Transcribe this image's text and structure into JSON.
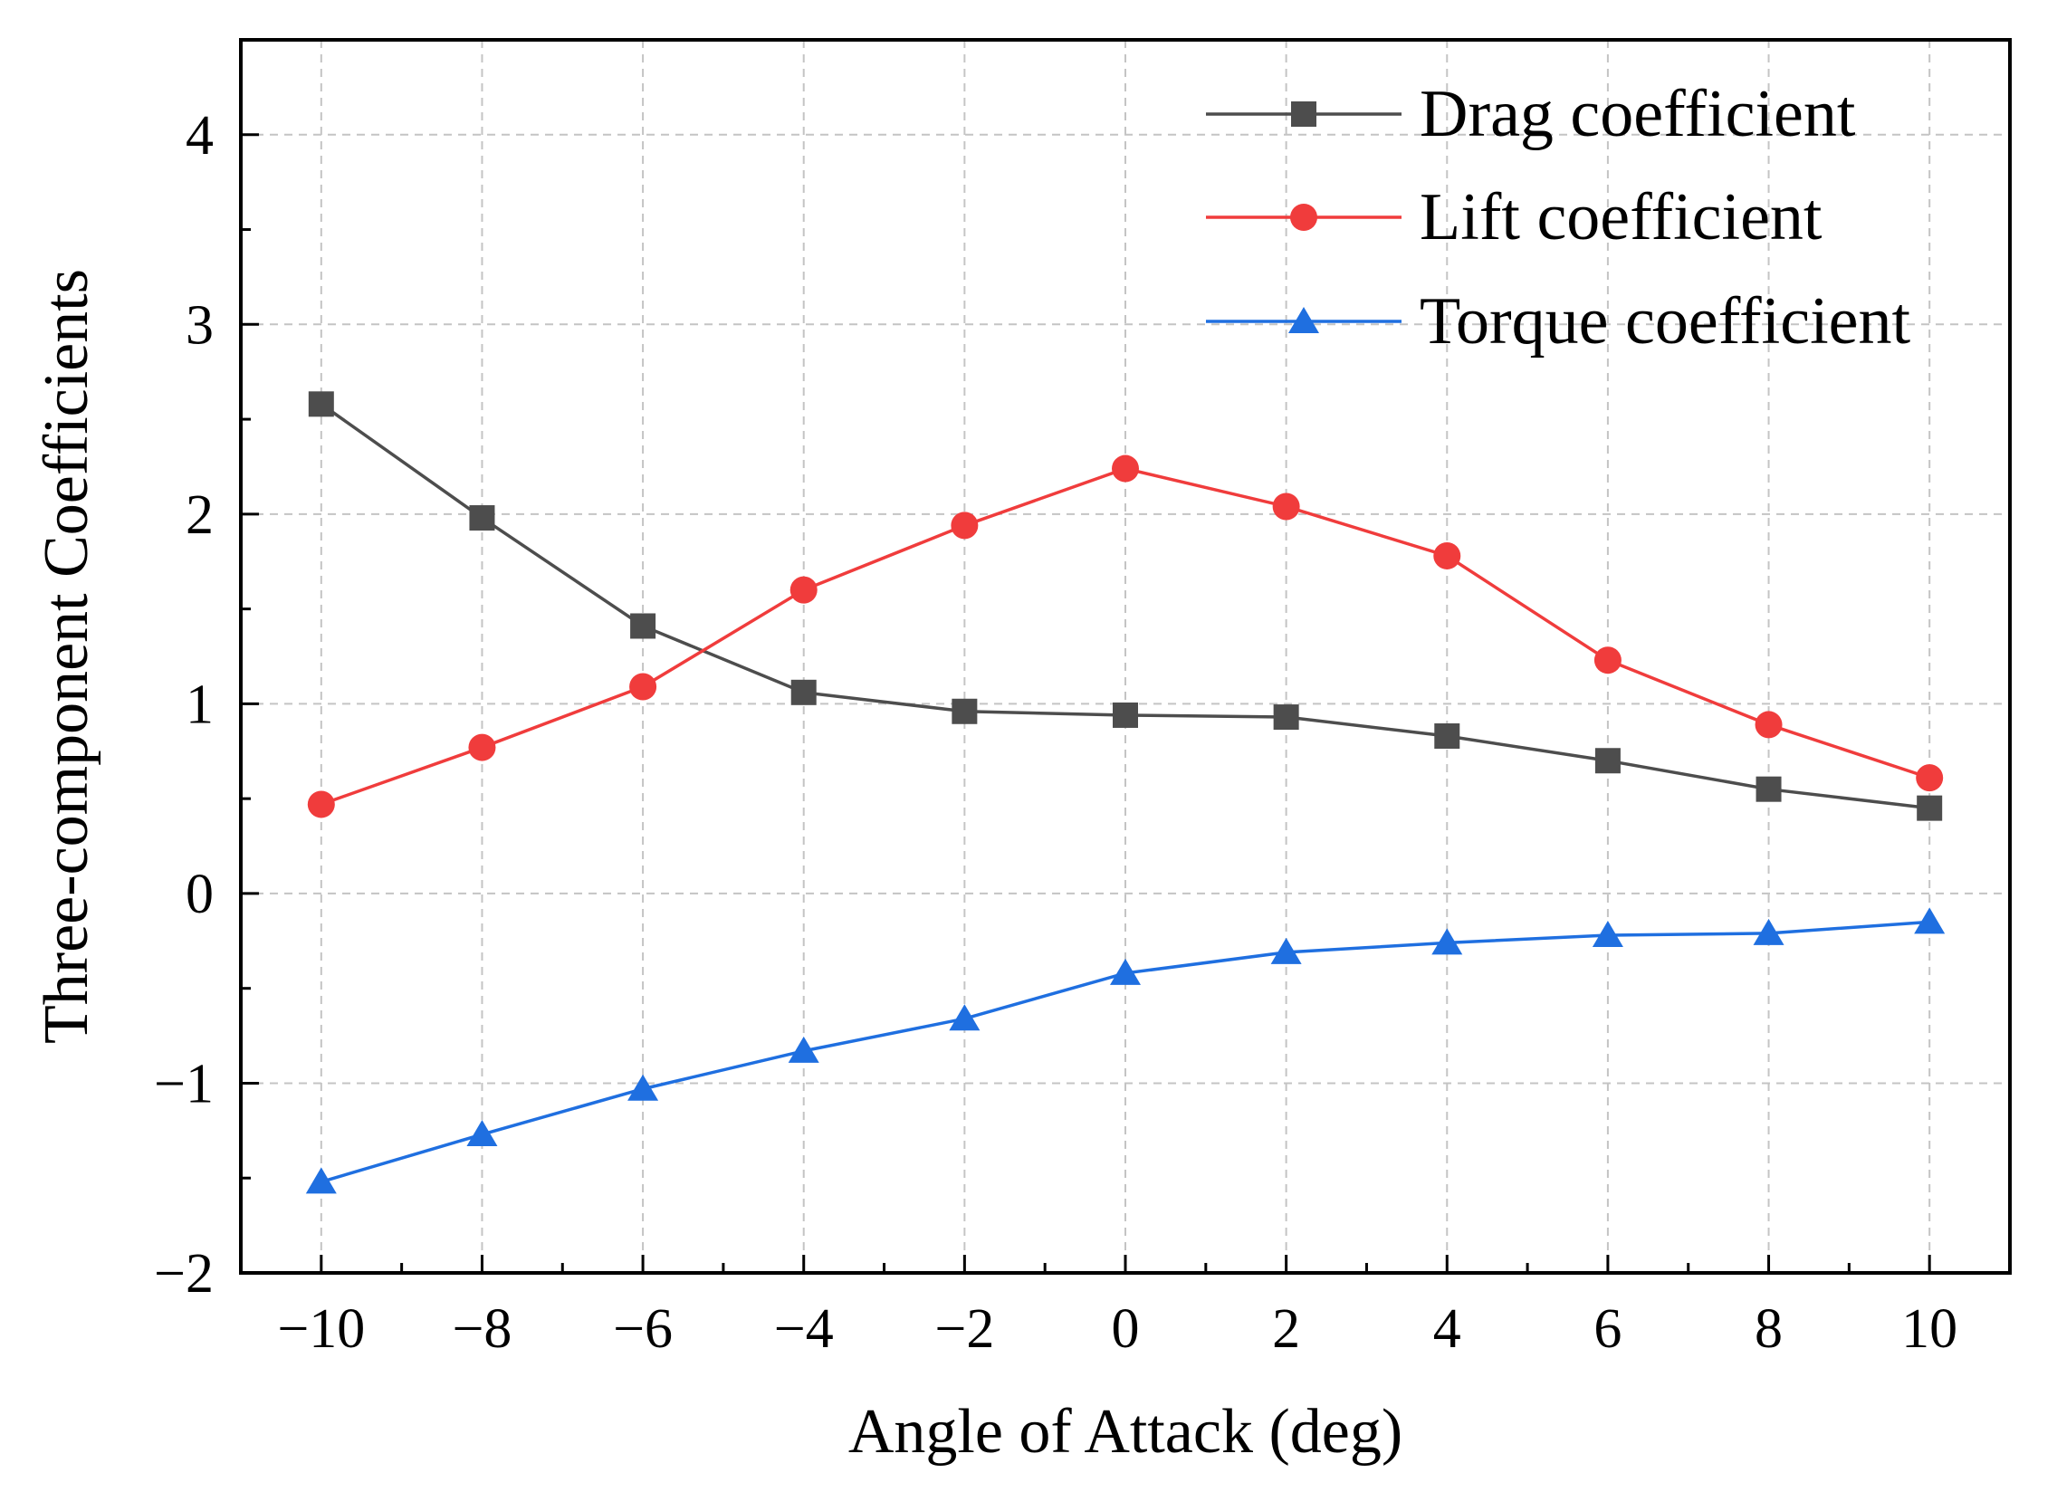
{
  "chart_data": {
    "type": "line",
    "title": "",
    "xlabel": "Angle of Attack (deg)",
    "ylabel": "Three-component Coefficients",
    "xlim": [
      -11,
      11
    ],
    "ylim": [
      -2,
      4.5
    ],
    "x_ticks": [
      -10,
      -8,
      -6,
      -4,
      -2,
      0,
      2,
      4,
      6,
      8,
      10
    ],
    "x_tick_labels": [
      "−10",
      "−8",
      "−6",
      "−4",
      "−2",
      "0",
      "2",
      "4",
      "6",
      "8",
      "10"
    ],
    "y_ticks": [
      -2,
      -1,
      0,
      1,
      2,
      3,
      4
    ],
    "y_tick_labels": [
      "−2",
      "−1",
      "0",
      "1",
      "2",
      "3",
      "4"
    ],
    "grid": true,
    "legend_position": "top-right",
    "x": [
      -10,
      -8,
      -6,
      -4,
      -2,
      0,
      2,
      4,
      6,
      8,
      10
    ],
    "series": [
      {
        "name": "Drag coefficient",
        "color": "#4d4d4d",
        "marker": "square",
        "values": [
          2.58,
          1.98,
          1.41,
          1.06,
          0.96,
          0.94,
          0.93,
          0.83,
          0.7,
          0.55,
          0.45
        ]
      },
      {
        "name": "Lift coefficient",
        "color": "#f03c3c",
        "marker": "circle",
        "values": [
          0.47,
          0.77,
          1.09,
          1.6,
          1.94,
          2.24,
          2.04,
          1.78,
          1.23,
          0.89,
          0.61
        ]
      },
      {
        "name": "Torque coefficient",
        "color": "#1f6fe0",
        "marker": "triangle",
        "values": [
          -1.52,
          -1.27,
          -1.03,
          -0.83,
          -0.66,
          -0.42,
          -0.31,
          -0.26,
          -0.22,
          -0.21,
          -0.15
        ]
      }
    ]
  }
}
